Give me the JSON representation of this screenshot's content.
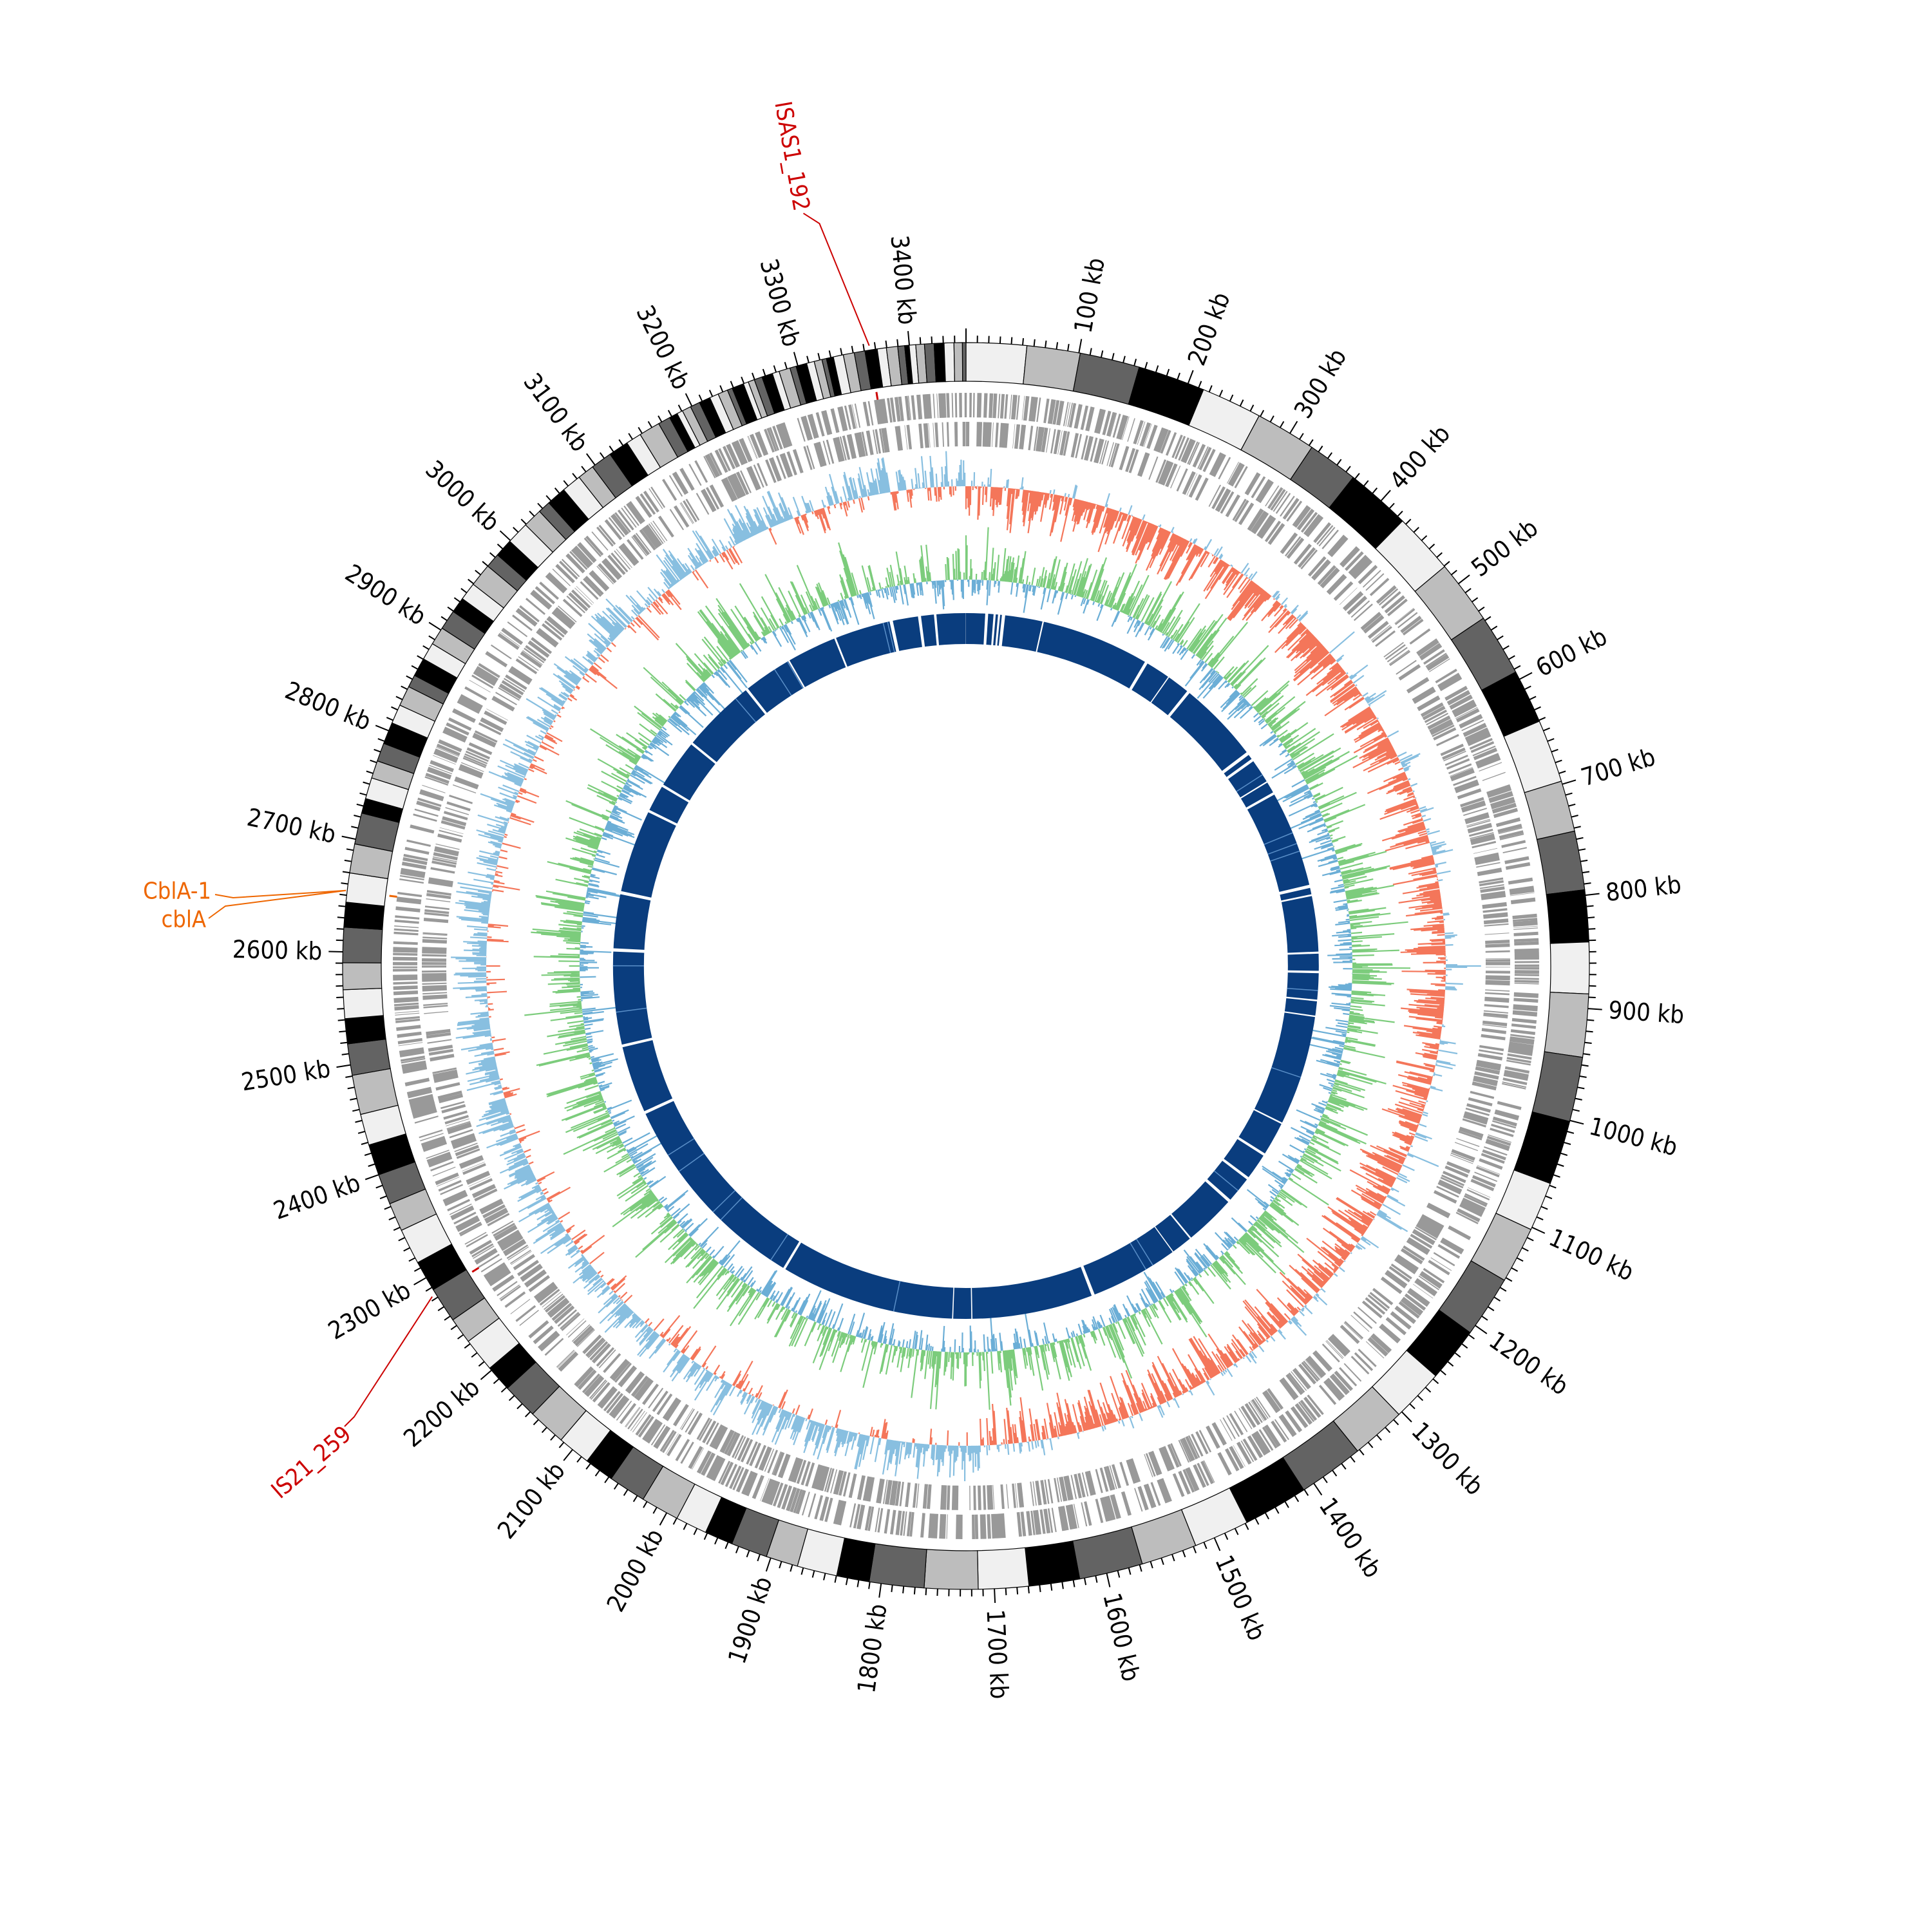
{
  "genome": {
    "length_kb": 3450,
    "tick_unit": "kb",
    "tick_step_kb": 100,
    "minor_tick_step_kb": 10
  },
  "tick_labels": [
    "100 kb",
    "200 kb",
    "300 kb",
    "400 kb",
    "500 kb",
    "600 kb",
    "700 kb",
    "800 kb",
    "900 kb",
    "1000 kb",
    "1100 kb",
    "1200 kb",
    "1300 kb",
    "1400 kb",
    "1500 kb",
    "1600 kb",
    "1700 kb",
    "1800 kb",
    "1900 kb",
    "2000 kb",
    "2100 kb",
    "2200 kb",
    "2300 kb",
    "2400 kb",
    "2500 kb",
    "2600 kb",
    "2700 kb",
    "2800 kb",
    "2900 kb",
    "3000 kb",
    "3100 kb",
    "3200 kb",
    "3300 kb",
    "3400 kb"
  ],
  "annotations": [
    {
      "label": "ISAS1_192",
      "position_kb": 3365,
      "color": "#cc0000"
    },
    {
      "label": "CblA-1",
      "position_kb": 2654,
      "color": "#ee6600"
    },
    {
      "label": "cblA",
      "position_kb": 2654,
      "color": "#ee6600"
    },
    {
      "label": "IS21_259",
      "position_kb": 2283,
      "color": "#cc0000"
    }
  ],
  "tracks": {
    "contig_palette": [
      "#f0f0f0",
      "#bdbdbd",
      "#636363",
      "#000000",
      "#f0f0f0",
      "#bdbdbd",
      "#636363",
      "#000000"
    ],
    "gene_color": "#999999",
    "gc_skew_positive_color": "#88bfe0",
    "gc_skew_negative_color": "#f4765a",
    "gc_content_positive_color": "#7ccc7c",
    "gc_content_negative_color": "#6baed6",
    "synteny_color": "#0a3d7e",
    "synteny_gaps_kb": [
      30,
      43,
      50,
      56,
      120,
      292,
      335,
      372,
      505,
      518,
      560,
      580,
      735,
      750,
      840,
      870,
      915,
      940,
      1115,
      1170,
      1215,
      1260,
      1345,
      1380,
      1520,
      1715,
      1745,
      2020,
      2350,
      2460,
      2610,
      2700,
      2835,
      2880,
      2960,
      3080,
      3160,
      3240,
      3330,
      3375,
      3400
    ]
  }
}
